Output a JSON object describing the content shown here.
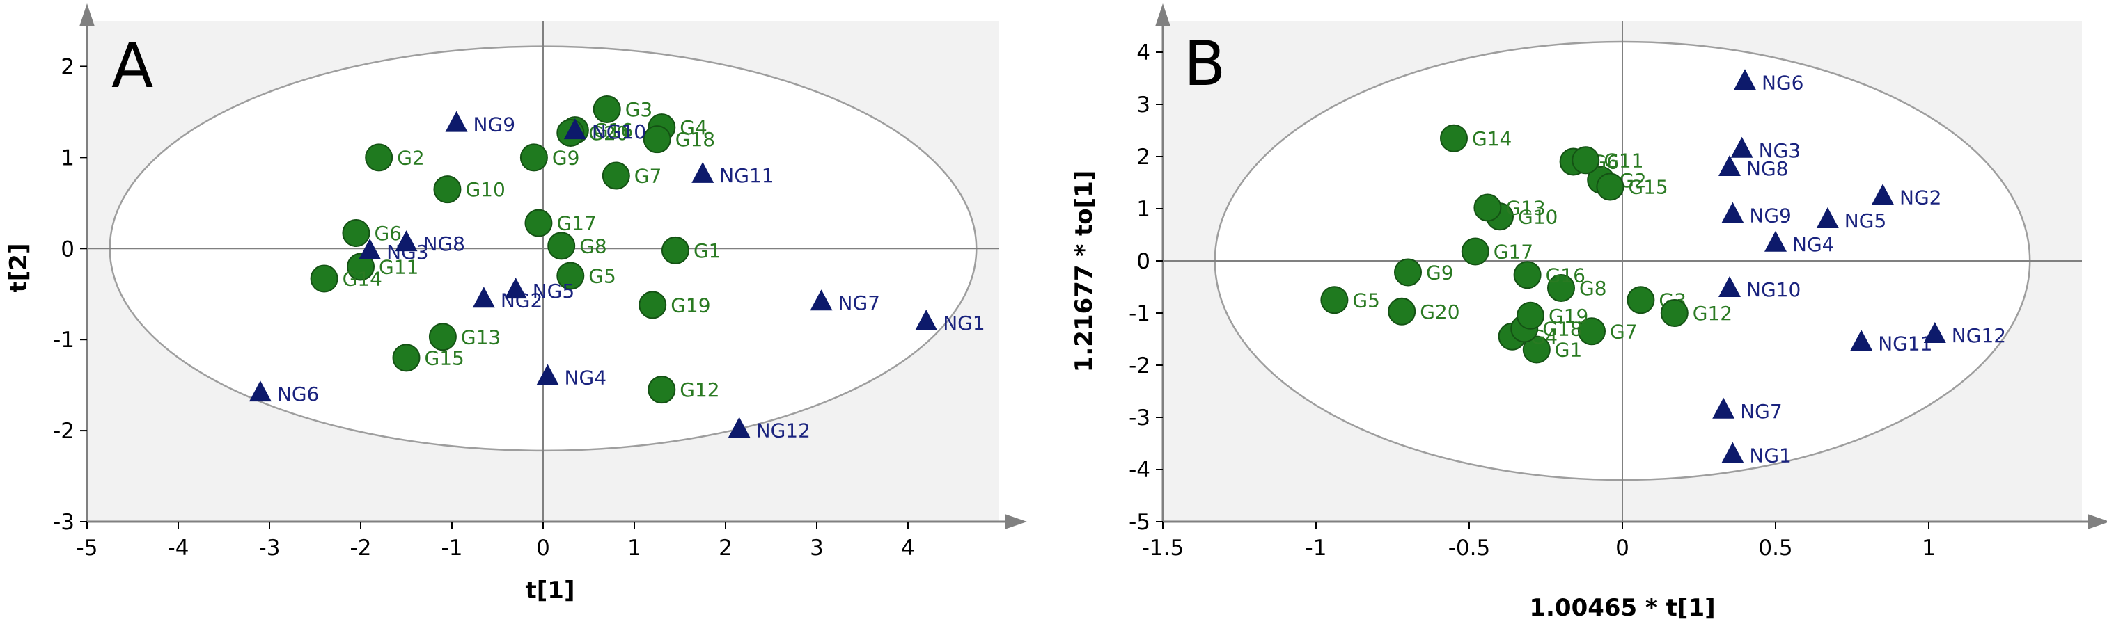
{
  "colors": {
    "group_g": "#1f7a1f",
    "group_g_stroke": "#145214",
    "group_ng": "#0d1a6b",
    "label_g": "#2a7a22",
    "label_ng": "#1a237e",
    "plot_bg": "#f2f2f2",
    "ellipse": "#9e9e9e",
    "axis": "#808080"
  },
  "chart_data": [
    {
      "type": "scatter",
      "panel_label": "A",
      "title": "",
      "xlabel": "t[1]",
      "ylabel": "t[2]",
      "xlim": [
        -5,
        5
      ],
      "ylim": [
        -3,
        2.5
      ],
      "xticks": [
        -5,
        -4,
        -3,
        -2,
        -1,
        0,
        1,
        2,
        3,
        4
      ],
      "yticks": [
        -3,
        -2,
        -1,
        0,
        1,
        2
      ],
      "ellipse": {
        "center": [
          0,
          0
        ],
        "rx": 4.75,
        "ry": 2.22
      },
      "series": [
        {
          "name": "G",
          "marker": "circle",
          "points": [
            {
              "label": "G1",
              "x": 1.45,
              "y": -0.02
            },
            {
              "label": "G2",
              "x": -1.8,
              "y": 1.0
            },
            {
              "label": "G3",
              "x": 0.7,
              "y": 1.53
            },
            {
              "label": "G4",
              "x": 1.3,
              "y": 1.33
            },
            {
              "label": "G5",
              "x": 0.3,
              "y": -0.3
            },
            {
              "label": "G6",
              "x": -2.05,
              "y": 0.17
            },
            {
              "label": "G7",
              "x": 0.8,
              "y": 0.8
            },
            {
              "label": "G8",
              "x": 0.2,
              "y": 0.03
            },
            {
              "label": "G9",
              "x": -0.1,
              "y": 1.0
            },
            {
              "label": "G10",
              "x": -1.05,
              "y": 0.65
            },
            {
              "label": "G11",
              "x": -2.0,
              "y": -0.2
            },
            {
              "label": "G12",
              "x": 1.3,
              "y": -1.55
            },
            {
              "label": "G13",
              "x": -1.1,
              "y": -0.97
            },
            {
              "label": "G14",
              "x": -2.4,
              "y": -0.33
            },
            {
              "label": "G15",
              "x": -1.5,
              "y": -1.2
            },
            {
              "label": "G16",
              "x": 0.35,
              "y": 1.3
            },
            {
              "label": "G17",
              "x": -0.05,
              "y": 0.28
            },
            {
              "label": "G18",
              "x": 1.25,
              "y": 1.2
            },
            {
              "label": "G19",
              "x": 1.2,
              "y": -0.62
            },
            {
              "label": "G20",
              "x": 0.3,
              "y": 1.27
            }
          ]
        },
        {
          "name": "NG",
          "marker": "triangle",
          "points": [
            {
              "label": "NG1",
              "x": 4.2,
              "y": -0.8
            },
            {
              "label": "NG2",
              "x": -0.65,
              "y": -0.55
            },
            {
              "label": "NG3",
              "x": -1.9,
              "y": -0.02
            },
            {
              "label": "NG4",
              "x": 0.05,
              "y": -1.4
            },
            {
              "label": "NG5",
              "x": -0.3,
              "y": -0.45
            },
            {
              "label": "NG6",
              "x": -3.1,
              "y": -1.58
            },
            {
              "label": "NG7",
              "x": 3.05,
              "y": -0.58
            },
            {
              "label": "NG8",
              "x": -1.5,
              "y": 0.07
            },
            {
              "label": "NG9",
              "x": -0.95,
              "y": 1.38
            },
            {
              "label": "NG10",
              "x": 0.35,
              "y": 1.3
            },
            {
              "label": "NG11",
              "x": 1.75,
              "y": 0.82
            },
            {
              "label": "NG12",
              "x": 2.15,
              "y": -1.98
            }
          ]
        }
      ]
    },
    {
      "type": "scatter",
      "panel_label": "B",
      "title": "",
      "xlabel": "1.00465 * t[1]",
      "ylabel": "1.21677 * to[1]",
      "xlim": [
        -1.5,
        1.5
      ],
      "ylim": [
        -5,
        4.6
      ],
      "xticks": [
        -1.5,
        -1,
        -0.5,
        0,
        0.5,
        1
      ],
      "yticks": [
        -5,
        -4,
        -3,
        -2,
        -1,
        0,
        1,
        2,
        3,
        4
      ],
      "ellipse": {
        "center": [
          0,
          0
        ],
        "rx": 1.33,
        "ry": 4.2
      },
      "series": [
        {
          "name": "G",
          "marker": "circle",
          "points": [
            {
              "label": "G1",
              "x": -0.28,
              "y": -1.7
            },
            {
              "label": "G2",
              "x": -0.07,
              "y": 1.55
            },
            {
              "label": "G3",
              "x": 0.06,
              "y": -0.75
            },
            {
              "label": "G4",
              "x": -0.36,
              "y": -1.45
            },
            {
              "label": "G5",
              "x": -0.94,
              "y": -0.75
            },
            {
              "label": "G6",
              "x": -0.16,
              "y": 1.9
            },
            {
              "label": "G7",
              "x": -0.1,
              "y": -1.35
            },
            {
              "label": "G8",
              "x": -0.2,
              "y": -0.52
            },
            {
              "label": "G9",
              "x": -0.7,
              "y": -0.22
            },
            {
              "label": "G10",
              "x": -0.4,
              "y": 0.85
            },
            {
              "label": "G11",
              "x": -0.12,
              "y": 1.93
            },
            {
              "label": "G12",
              "x": 0.17,
              "y": -1.0
            },
            {
              "label": "G13",
              "x": -0.44,
              "y": 1.02
            },
            {
              "label": "G14",
              "x": -0.55,
              "y": 2.35
            },
            {
              "label": "G15",
              "x": -0.04,
              "y": 1.42
            },
            {
              "label": "G16",
              "x": -0.31,
              "y": -0.27
            },
            {
              "label": "G17",
              "x": -0.48,
              "y": 0.18
            },
            {
              "label": "G18",
              "x": -0.32,
              "y": -1.3
            },
            {
              "label": "G19",
              "x": -0.3,
              "y": -1.05
            },
            {
              "label": "G20",
              "x": -0.72,
              "y": -0.97
            }
          ]
        },
        {
          "name": "NG",
          "marker": "triangle",
          "points": [
            {
              "label": "NG1",
              "x": 0.36,
              "y": -3.7
            },
            {
              "label": "NG2",
              "x": 0.85,
              "y": 1.25
            },
            {
              "label": "NG3",
              "x": 0.39,
              "y": 2.15
            },
            {
              "label": "NG4",
              "x": 0.5,
              "y": 0.35
            },
            {
              "label": "NG5",
              "x": 0.67,
              "y": 0.8
            },
            {
              "label": "NG6",
              "x": 0.4,
              "y": 3.45
            },
            {
              "label": "NG7",
              "x": 0.33,
              "y": -2.85
            },
            {
              "label": "NG8",
              "x": 0.35,
              "y": 1.8
            },
            {
              "label": "NG9",
              "x": 0.36,
              "y": 0.9
            },
            {
              "label": "NG10",
              "x": 0.35,
              "y": -0.52
            },
            {
              "label": "NG11",
              "x": 0.78,
              "y": -1.55
            },
            {
              "label": "NG12",
              "x": 1.02,
              "y": -1.4
            }
          ]
        }
      ]
    }
  ]
}
